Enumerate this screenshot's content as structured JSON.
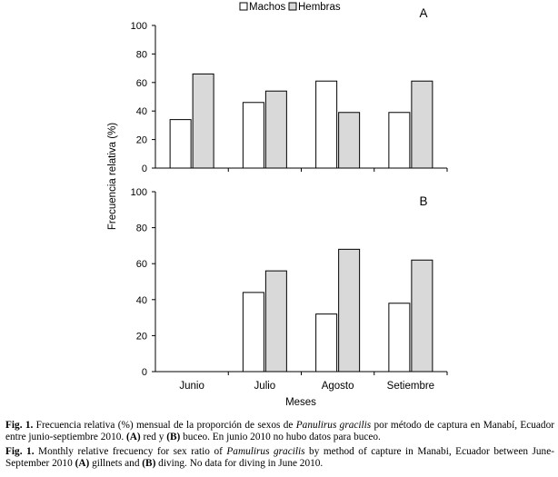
{
  "chart_data": [
    {
      "type": "bar",
      "panel_label": "A",
      "categories": [
        "Junio",
        "Julio",
        "Agosto",
        "Setiembre"
      ],
      "series": [
        {
          "name": "Machos",
          "values": [
            34,
            46,
            61,
            39
          ]
        },
        {
          "name": "Hembras",
          "values": [
            66,
            54,
            39,
            61
          ]
        }
      ],
      "ylim": [
        0,
        100
      ],
      "yticks": [
        0,
        20,
        40,
        60,
        80,
        100
      ],
      "legend": "top-center"
    },
    {
      "type": "bar",
      "panel_label": "B",
      "categories": [
        "Junio",
        "Julio",
        "Agosto",
        "Setiembre"
      ],
      "series": [
        {
          "name": "Machos",
          "values": [
            null,
            44,
            32,
            38
          ]
        },
        {
          "name": "Hembras",
          "values": [
            null,
            56,
            68,
            62
          ]
        }
      ],
      "ylim": [
        0,
        100
      ],
      "yticks": [
        0,
        20,
        40,
        60,
        80,
        100
      ]
    }
  ],
  "ylabel": "Frecuencia relativa (%)",
  "xlabel": "Meses",
  "legend": {
    "machos": "Machos",
    "hembras": "Hembras"
  },
  "colors": {
    "machos": "#ffffff",
    "hembras": "#d9d9d9",
    "stroke": "#000000"
  },
  "caption": {
    "es": {
      "label": "Fig. 1.",
      "text_1": " Frecuencia relativa (%) mensual de la proporción de sexos de ",
      "species": "Panulirus gracilis",
      "text_2": " por método de captura en Manabí, Ecuador entre junio-septiembre 2010. ",
      "a_label": "(A)",
      "text_3": " red y ",
      "b_label": "(B)",
      "text_4": " buceo. En junio 2010 no hubo datos para buceo."
    },
    "en": {
      "label": "Fig. 1.",
      "text_1": " Monthly relative frecuency for sex ratio of ",
      "species": "Pamulirus gracilis",
      "text_2": " by method of capture in Manabi, Ecuador between June-September 2010 ",
      "a_label": "(A)",
      "text_3": " gillnets and ",
      "b_label": "(B)",
      "text_4": " diving. No data for diving in June 2010."
    }
  }
}
